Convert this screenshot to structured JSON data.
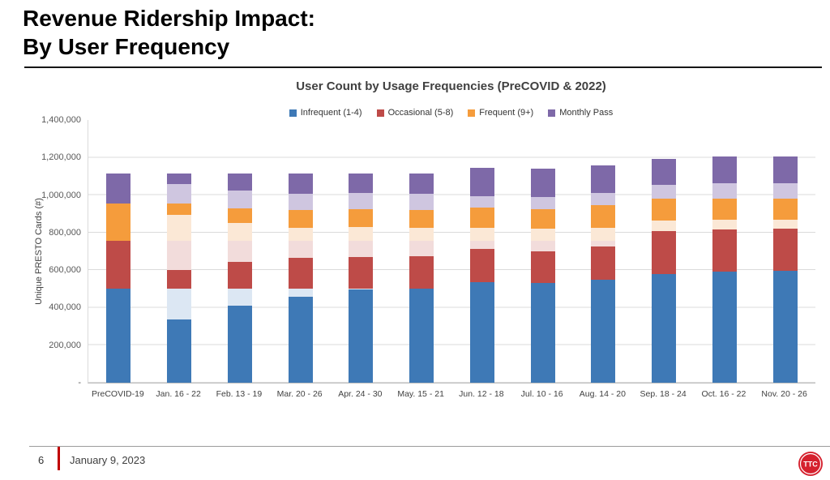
{
  "slide": {
    "title_line1": "Revenue Ridership Impact:",
    "title_line2": "By User Frequency",
    "footer": {
      "page_number": "6",
      "date": "January 9, 2023"
    },
    "logo_text": "TTC"
  },
  "chart_data": {
    "type": "bar",
    "stacked": true,
    "title": "User Count by Usage Frequencies (PreCOVID & 2022)",
    "ylabel": "Unique PRESTO Cards (#)",
    "ylim": [
      0,
      1400000
    ],
    "grid": true,
    "legend_position": "top",
    "y_ticks": [
      {
        "label": "-",
        "value": 0
      },
      {
        "label": "200,000",
        "value": 200000
      },
      {
        "label": "400,000",
        "value": 400000
      },
      {
        "label": "600,000",
        "value": 600000
      },
      {
        "label": "800,000",
        "value": 800000
      },
      {
        "label": "1,000,000",
        "value": 1000000
      },
      {
        "label": "1,200,000",
        "value": 1200000
      },
      {
        "label": "1,400,000",
        "value": 1400000
      }
    ],
    "legend": [
      {
        "label": "Infrequent (1-4)",
        "key": "blue"
      },
      {
        "label": "Occasional (5-8)",
        "key": "red"
      },
      {
        "label": "Frequent (9+)",
        "key": "orange"
      },
      {
        "label": "Monthly Pass",
        "key": "purple"
      }
    ],
    "colors": {
      "blue": "#3E79B6",
      "blue_faded": "#DCE7F3",
      "red": "#BE4B48",
      "red_faded": "#F2DCDB",
      "orange": "#F59C3C",
      "orange_faded": "#FBE8D6",
      "purple": "#7E69A8",
      "purple_faded": "#CFC6E0"
    },
    "bars": [
      {
        "label": "PreCOVID-19",
        "segments": [
          {
            "key": "blue",
            "value": 500000
          },
          {
            "key": "red",
            "value": 255000
          },
          {
            "key": "orange",
            "value": 200000
          },
          {
            "key": "purple",
            "value": 160000
          }
        ]
      },
      {
        "label": "Jan. 16 - 22",
        "segments": [
          {
            "key": "blue",
            "value": 335000
          },
          {
            "key": "blue_faded",
            "value": 165000
          },
          {
            "key": "red",
            "value": 100000
          },
          {
            "key": "red_faded",
            "value": 155000
          },
          {
            "key": "orange_faded",
            "value": 140000
          },
          {
            "key": "orange",
            "value": 60000
          },
          {
            "key": "purple_faded",
            "value": 105000
          },
          {
            "key": "purple",
            "value": 55000
          }
        ]
      },
      {
        "label": "Feb. 13 - 19",
        "segments": [
          {
            "key": "blue",
            "value": 410000
          },
          {
            "key": "blue_faded",
            "value": 90000
          },
          {
            "key": "red",
            "value": 145000
          },
          {
            "key": "red_faded",
            "value": 110000
          },
          {
            "key": "orange_faded",
            "value": 95000
          },
          {
            "key": "orange",
            "value": 80000
          },
          {
            "key": "purple_faded",
            "value": 95000
          },
          {
            "key": "purple",
            "value": 90000
          }
        ]
      },
      {
        "label": "Mar. 20 - 26",
        "segments": [
          {
            "key": "blue",
            "value": 460000
          },
          {
            "key": "blue_faded",
            "value": 40000
          },
          {
            "key": "red",
            "value": 165000
          },
          {
            "key": "red_faded",
            "value": 90000
          },
          {
            "key": "orange_faded",
            "value": 70000
          },
          {
            "key": "orange",
            "value": 95000
          },
          {
            "key": "purple_faded",
            "value": 85000
          },
          {
            "key": "purple",
            "value": 110000
          }
        ]
      },
      {
        "label": "Apr. 24 - 30",
        "segments": [
          {
            "key": "blue",
            "value": 495000
          },
          {
            "key": "blue_faded",
            "value": 5000
          },
          {
            "key": "red",
            "value": 170000
          },
          {
            "key": "red_faded",
            "value": 85000
          },
          {
            "key": "orange_faded",
            "value": 75000
          },
          {
            "key": "orange",
            "value": 95000
          },
          {
            "key": "purple_faded",
            "value": 85000
          },
          {
            "key": "purple",
            "value": 105000
          }
        ]
      },
      {
        "label": "May. 15 - 21",
        "segments": [
          {
            "key": "blue",
            "value": 500000
          },
          {
            "key": "red",
            "value": 175000
          },
          {
            "key": "red_faded",
            "value": 80000
          },
          {
            "key": "orange_faded",
            "value": 70000
          },
          {
            "key": "orange",
            "value": 95000
          },
          {
            "key": "purple_faded",
            "value": 85000
          },
          {
            "key": "purple",
            "value": 110000
          }
        ]
      },
      {
        "label": "Jun. 12 - 18",
        "segments": [
          {
            "key": "blue",
            "value": 535000
          },
          {
            "key": "red",
            "value": 180000
          },
          {
            "key": "red_faded",
            "value": 40000
          },
          {
            "key": "orange_faded",
            "value": 70000
          },
          {
            "key": "orange",
            "value": 110000
          },
          {
            "key": "purple_faded",
            "value": 60000
          },
          {
            "key": "purple",
            "value": 150000
          }
        ]
      },
      {
        "label": "Jul. 10 - 16",
        "segments": [
          {
            "key": "blue",
            "value": 530000
          },
          {
            "key": "red",
            "value": 170000
          },
          {
            "key": "red_faded",
            "value": 55000
          },
          {
            "key": "orange_faded",
            "value": 65000
          },
          {
            "key": "orange",
            "value": 105000
          },
          {
            "key": "purple_faded",
            "value": 65000
          },
          {
            "key": "purple",
            "value": 150000
          }
        ]
      },
      {
        "label": "Aug. 14 - 20",
        "segments": [
          {
            "key": "blue",
            "value": 550000
          },
          {
            "key": "red",
            "value": 175000
          },
          {
            "key": "red_faded",
            "value": 30000
          },
          {
            "key": "orange_faded",
            "value": 70000
          },
          {
            "key": "orange",
            "value": 120000
          },
          {
            "key": "purple_faded",
            "value": 65000
          },
          {
            "key": "purple",
            "value": 150000
          }
        ]
      },
      {
        "label": "Sep. 18 - 24",
        "segments": [
          {
            "key": "blue",
            "value": 580000
          },
          {
            "key": "red",
            "value": 230000
          },
          {
            "key": "orange_faded",
            "value": 55000
          },
          {
            "key": "orange",
            "value": 115000
          },
          {
            "key": "purple_faded",
            "value": 75000
          },
          {
            "key": "purple",
            "value": 140000
          }
        ]
      },
      {
        "label": "Oct. 16 - 22",
        "segments": [
          {
            "key": "blue",
            "value": 590000
          },
          {
            "key": "red",
            "value": 225000
          },
          {
            "key": "orange_faded",
            "value": 55000
          },
          {
            "key": "orange",
            "value": 110000
          },
          {
            "key": "purple_faded",
            "value": 85000
          },
          {
            "key": "purple",
            "value": 140000
          }
        ]
      },
      {
        "label": "Nov. 20 - 26",
        "segments": [
          {
            "key": "blue",
            "value": 595000
          },
          {
            "key": "red",
            "value": 225000
          },
          {
            "key": "orange_faded",
            "value": 50000
          },
          {
            "key": "orange",
            "value": 110000
          },
          {
            "key": "purple_faded",
            "value": 85000
          },
          {
            "key": "purple",
            "value": 140000
          }
        ]
      }
    ]
  }
}
